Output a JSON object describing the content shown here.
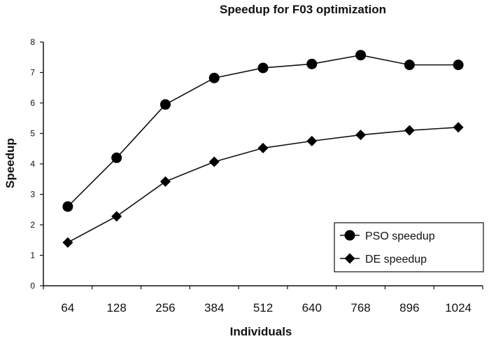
{
  "chart_data": {
    "type": "line",
    "title": "Speedup for F03 optimization",
    "xlabel": "Individuals",
    "ylabel": "Speedup",
    "categories": [
      "64",
      "128",
      "256",
      "384",
      "512",
      "640",
      "768",
      "896",
      "1024"
    ],
    "ylim": [
      0,
      8
    ],
    "yticks": [
      0,
      1,
      2,
      3,
      4,
      5,
      6,
      7,
      8
    ],
    "grid": false,
    "legend_position": "bottom-right",
    "series": [
      {
        "name": "PSO speedup",
        "marker": "circle",
        "values": [
          2.6,
          4.2,
          5.95,
          6.82,
          7.15,
          7.28,
          7.57,
          7.25,
          7.25
        ]
      },
      {
        "name": "DE speedup",
        "marker": "diamond",
        "values": [
          1.42,
          2.28,
          3.42,
          4.07,
          4.52,
          4.75,
          4.95,
          5.1,
          5.2
        ]
      }
    ]
  }
}
